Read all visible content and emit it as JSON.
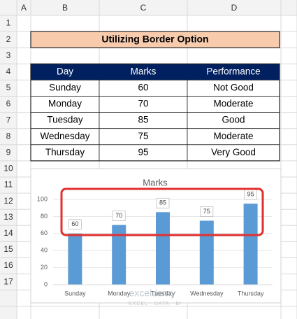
{
  "column_headers": [
    "A",
    "B",
    "C",
    "D"
  ],
  "row_numbers": [
    1,
    2,
    3,
    4,
    5,
    6,
    7,
    8,
    9,
    10,
    11,
    12,
    13,
    14,
    15,
    16,
    17
  ],
  "title": "Utilizing Border Option",
  "table": {
    "header": [
      "Day",
      "Marks",
      "Performance"
    ],
    "rows": [
      [
        "Sunday",
        "60",
        "Not Good"
      ],
      [
        "Monday",
        "70",
        "Moderate"
      ],
      [
        "Tuesday",
        "85",
        "Good"
      ],
      [
        "Wednesday",
        "75",
        "Moderate"
      ],
      [
        "Thursday",
        "95",
        "Very Good"
      ]
    ]
  },
  "chart_data": {
    "type": "bar",
    "title": "Marks",
    "categories": [
      "Sunday",
      "Monday",
      "Tuesday",
      "Wednesday",
      "Thursday"
    ],
    "values": [
      60,
      70,
      85,
      75,
      95
    ],
    "color": "#5b9bd5",
    "ylim": [
      0,
      100
    ],
    "yticks": [
      0,
      20,
      40,
      60,
      80,
      100
    ],
    "grid": true
  },
  "watermark": {
    "name": "exceldemy",
    "tagline": "EXCEL · DATA · BI"
  }
}
